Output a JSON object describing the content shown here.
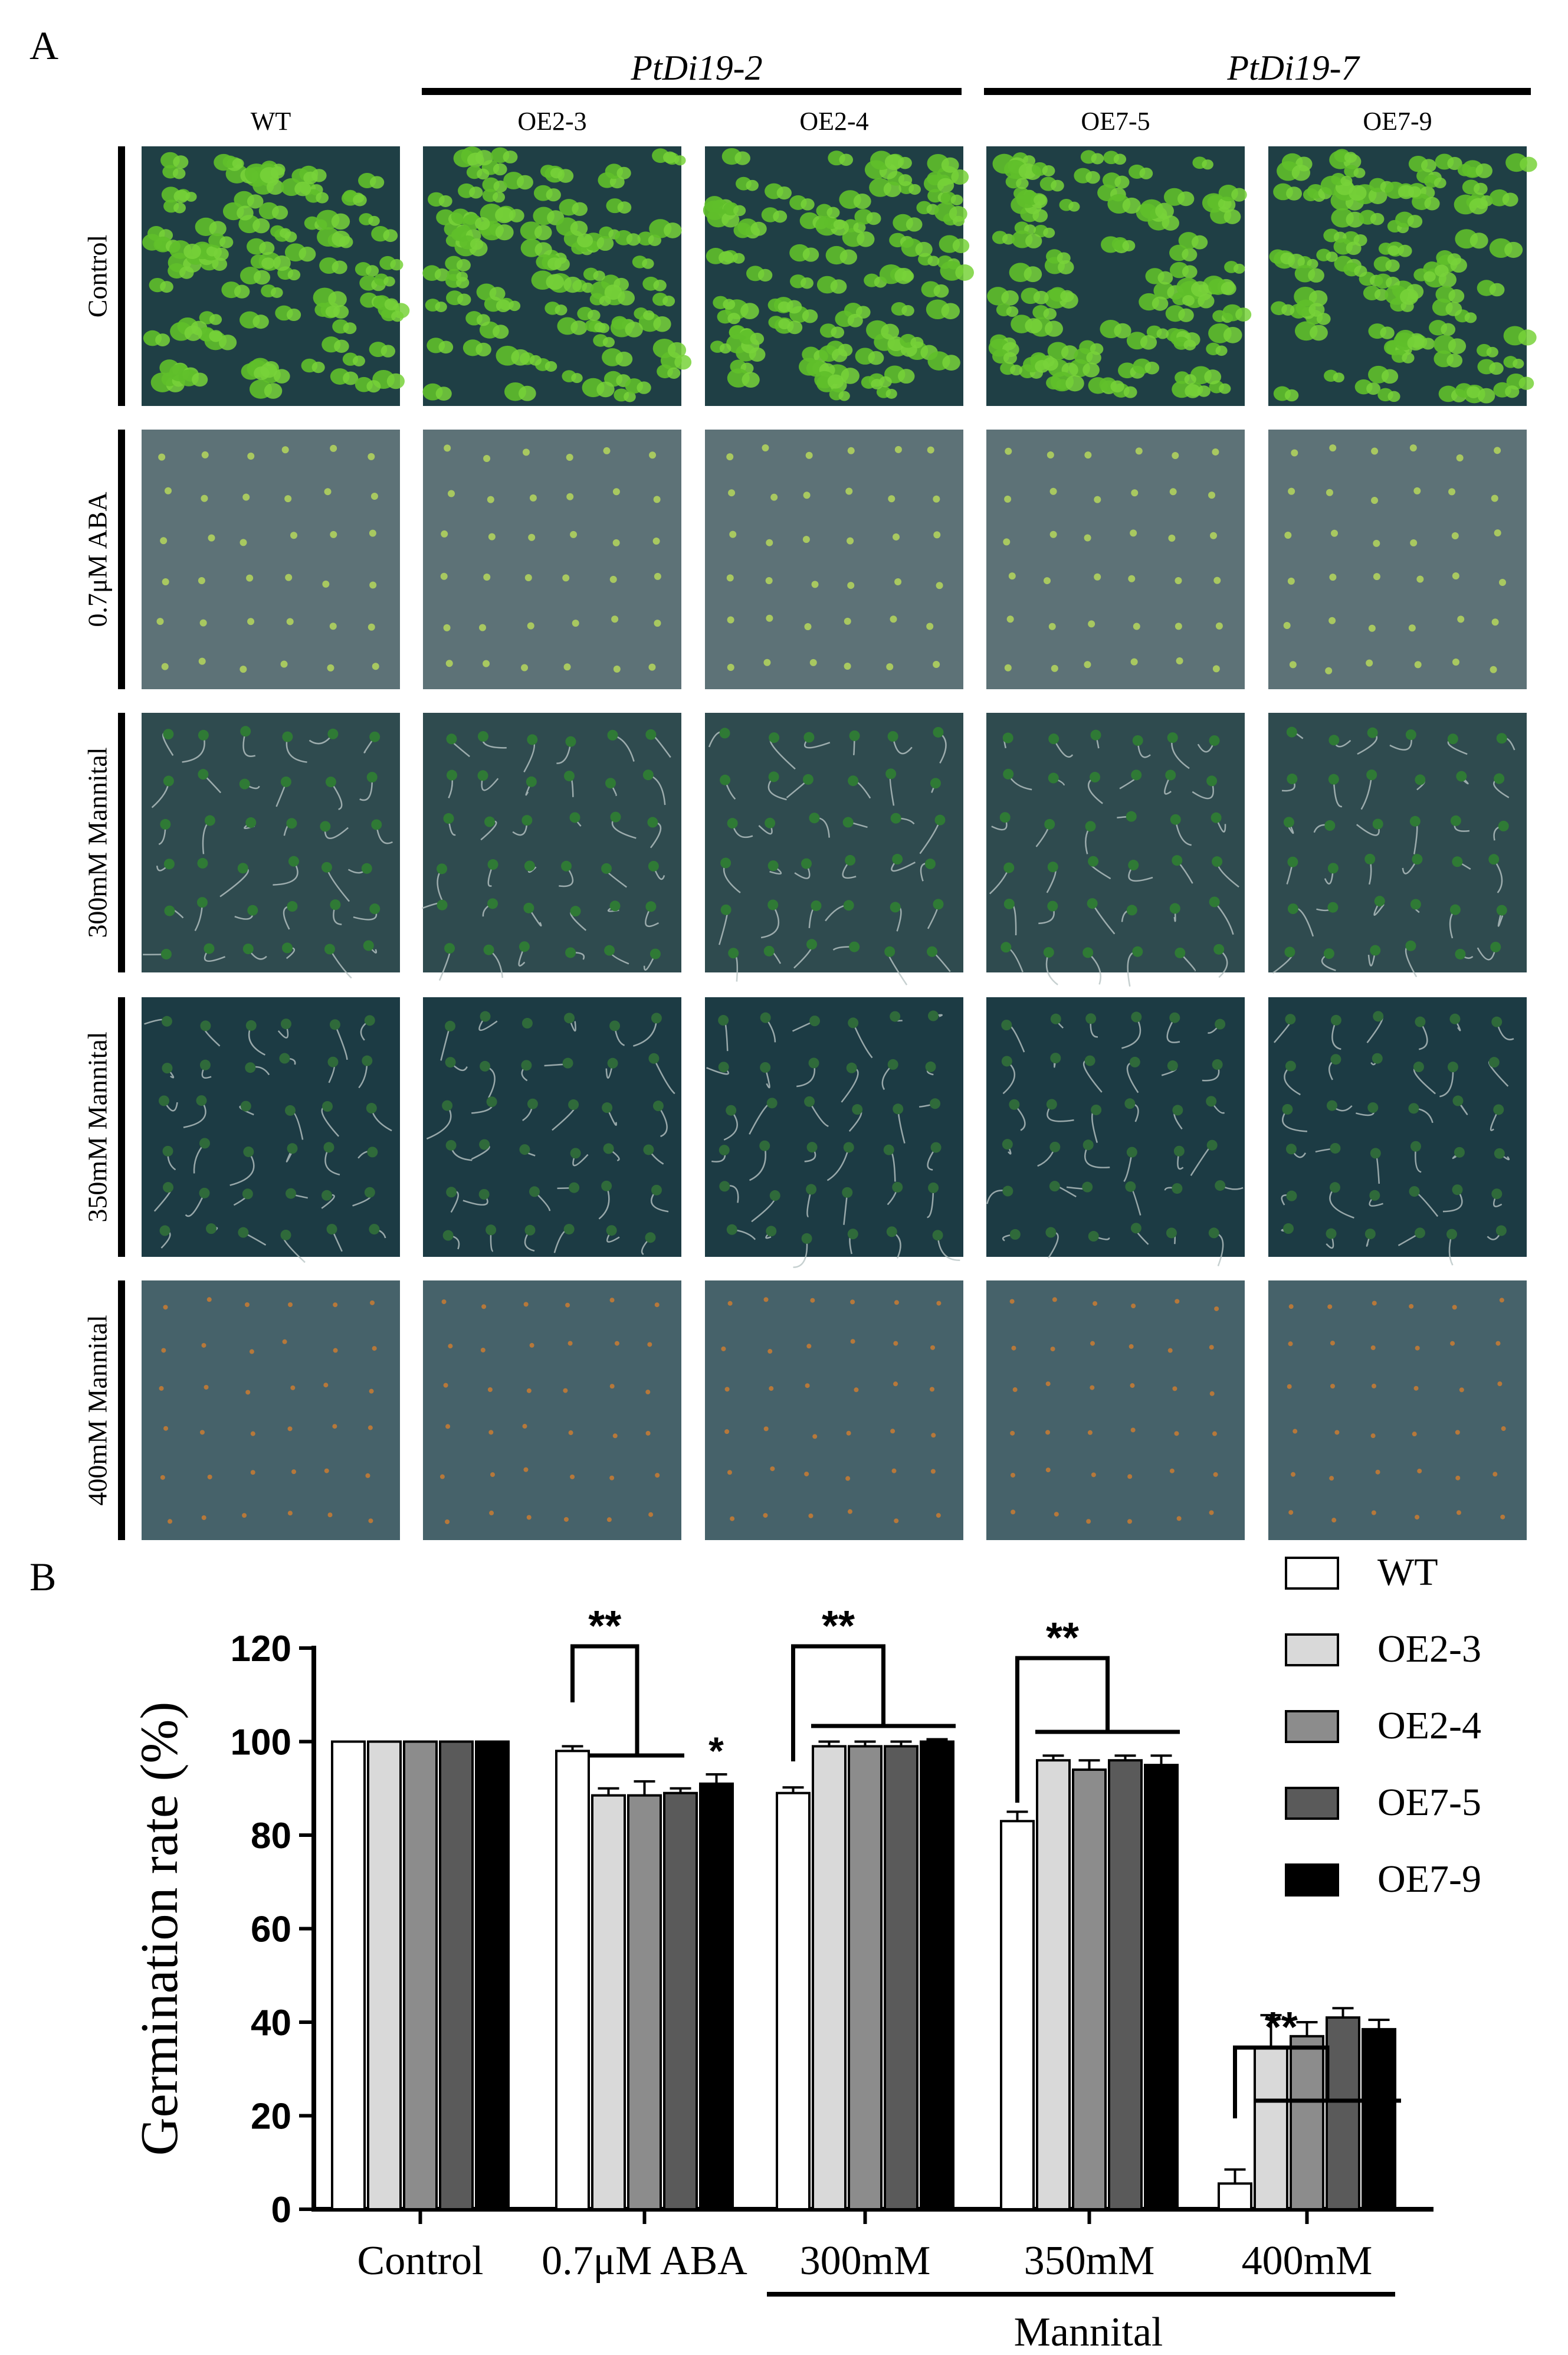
{
  "panel_a": {
    "label": "A",
    "groups": [
      {
        "name": "PtDi19-2"
      },
      {
        "name": "PtDi19-7"
      }
    ],
    "columns": [
      "WT",
      "OE2-3",
      "OE2-4",
      "OE7-5",
      "OE7-9"
    ],
    "rows": [
      {
        "label": "Control",
        "plate_color": "#1f3f45",
        "seedling_color": "#5fbf2a",
        "kind": "leaves"
      },
      {
        "label": "0.7μM ABA",
        "plate_color": "#5d7277",
        "seedling_color": "#a8c860",
        "kind": "sparse"
      },
      {
        "label": "300mM Mannital",
        "plate_color": "#2f4b4f",
        "seedling_color": "#2f7a35",
        "kind": "roots"
      },
      {
        "label": "350mM Mannital",
        "plate_color": "#1c3b44",
        "seedling_color": "#2f6a3a",
        "kind": "loops"
      },
      {
        "label": "400mM Mannital",
        "plate_color": "#46626a",
        "seedling_color": "#8fae88",
        "kind": "dots"
      }
    ]
  },
  "panel_b": {
    "label": "B",
    "mannital_label": "Mannital"
  },
  "chart_data": {
    "type": "bar",
    "ylabel": "Germination rate (%)",
    "ylim": [
      0,
      120
    ],
    "yticks": [
      0,
      20,
      40,
      60,
      80,
      100,
      120
    ],
    "categories": [
      "Control",
      "0.7μM ABA",
      "300mM",
      "350mM",
      "400mM"
    ],
    "series": [
      {
        "name": "WT",
        "color": "#ffffff",
        "values": [
          100,
          98,
          89,
          83,
          5.5
        ],
        "errors": [
          0,
          1.0,
          1.2,
          2.0,
          3.0
        ]
      },
      {
        "name": "OE2-3",
        "color": "#d9d9d9",
        "values": [
          100,
          88.5,
          99,
          96,
          34.5
        ],
        "errors": [
          0,
          1.5,
          1.0,
          1.0,
          7.0
        ]
      },
      {
        "name": "OE2-4",
        "color": "#8c8c8c",
        "values": [
          100,
          88.5,
          99,
          94,
          37
        ],
        "errors": [
          0,
          3.0,
          1.0,
          2.0,
          3.0
        ]
      },
      {
        "name": "OE7-5",
        "color": "#5a5a5a",
        "values": [
          100,
          89,
          99,
          96,
          41
        ],
        "errors": [
          0,
          1.0,
          1.0,
          1.0,
          2.0
        ]
      },
      {
        "name": "OE7-9",
        "color": "#000000",
        "values": [
          100,
          91,
          100,
          95,
          38.5
        ],
        "errors": [
          0,
          2.0,
          0.5,
          2.0,
          2.0
        ]
      }
    ],
    "annotations": [
      {
        "category": "0.7μM ABA",
        "text": "**"
      },
      {
        "category": "0.7μM ABA",
        "text": "*"
      },
      {
        "category": "300mM",
        "text": "**"
      },
      {
        "category": "350mM",
        "text": "**"
      },
      {
        "category": "400mM",
        "text": "**"
      }
    ],
    "legend_position": "top-right"
  }
}
